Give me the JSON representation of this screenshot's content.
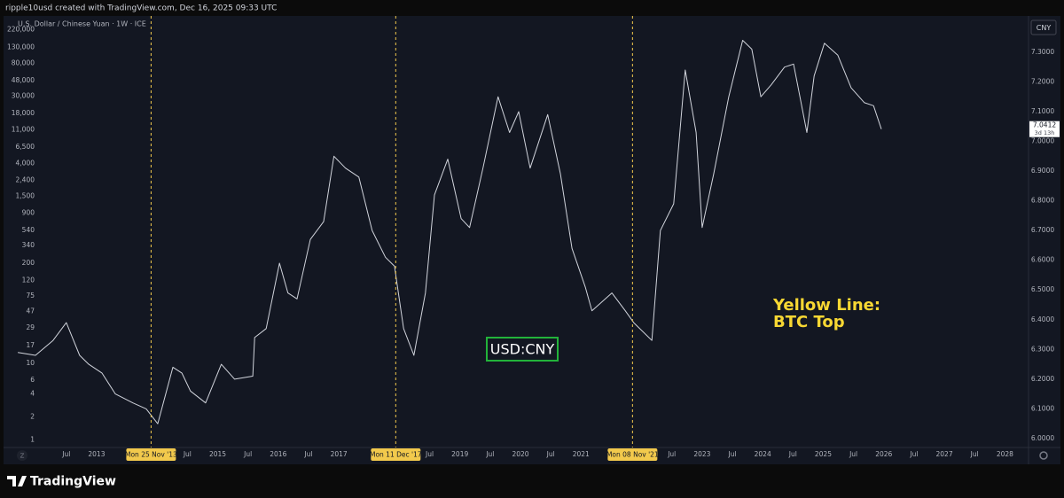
{
  "header": "ripple10usd created with TradingView.com, Dec 16, 2025 09:33 UTC",
  "footer_logo": "TradingView",
  "chart_data": {
    "type": "line",
    "symbol": "U.S. Dollar / Chinese Yuan · 1W · ICE",
    "currency": "CNY",
    "scale_button": "Z",
    "countdown": "3d 13h",
    "annotations": [
      "Yellow Line:",
      "BTC Top"
    ],
    "annotation_color": "#f7d733",
    "boxed_label": "USD:CNY",
    "boxed_label_color": "#22b33a",
    "x": [
      2011.7,
      2011.99,
      2012.28,
      2012.5,
      2012.72,
      2012.87,
      2013.09,
      2013.31,
      2013.6,
      2013.82,
      2014.01,
      2014.26,
      2014.41,
      2014.55,
      2014.8,
      2015.06,
      2015.28,
      2015.58,
      2015.61,
      2015.8,
      2016.02,
      2016.16,
      2016.31,
      2016.53,
      2016.75,
      2016.92,
      2017.11,
      2017.33,
      2017.55,
      2017.77,
      2017.92,
      2018.07,
      2018.24,
      2018.43,
      2018.58,
      2018.8,
      2019.02,
      2019.16,
      2019.38,
      2019.63,
      2019.82,
      2019.97,
      2020.16,
      2020.45,
      2020.66,
      2020.85,
      2021.07,
      2021.18,
      2021.51,
      2021.73,
      2021.87,
      2022.17,
      2022.31,
      2022.53,
      2022.72,
      2022.9,
      2023.0,
      2023.19,
      2023.44,
      2023.67,
      2023.82,
      2023.97,
      2024.14,
      2024.36,
      2024.51,
      2024.73,
      2024.85,
      2025.02,
      2025.24,
      2025.46,
      2025.68,
      2025.83,
      2025.96
    ],
    "series": [
      {
        "name": "USD:CNY",
        "color": "#d1d4dc",
        "axis": "y2",
        "values": [
          6.29,
          6.28,
          6.33,
          6.39,
          6.28,
          6.25,
          6.22,
          6.15,
          6.12,
          6.1,
          6.05,
          6.24,
          6.22,
          6.16,
          6.12,
          6.25,
          6.2,
          6.21,
          6.34,
          6.37,
          6.59,
          6.49,
          6.47,
          6.67,
          6.73,
          6.95,
          6.91,
          6.88,
          6.7,
          6.61,
          6.58,
          6.37,
          6.28,
          6.49,
          6.82,
          6.94,
          6.74,
          6.71,
          6.91,
          7.15,
          7.03,
          7.1,
          6.91,
          7.09,
          6.89,
          6.64,
          6.51,
          6.43,
          6.49,
          6.43,
          6.39,
          6.33,
          6.7,
          6.79,
          7.24,
          7.03,
          6.71,
          6.89,
          7.15,
          7.34,
          7.31,
          7.15,
          7.19,
          7.25,
          7.26,
          7.03,
          7.22,
          7.33,
          7.29,
          7.18,
          7.13,
          7.12,
          7.0412
        ]
      }
    ],
    "xlim": [
      2011.61,
      2028.39
    ],
    "xticks": [
      {
        "value": 2012.5,
        "label": "Jul"
      },
      2013,
      {
        "value": 2014.5,
        "label": "Jul"
      },
      2015,
      {
        "value": 2015.5,
        "label": "Jul"
      },
      2016,
      {
        "value": 2016.5,
        "label": "Jul"
      },
      2017,
      {
        "value": 2018.5,
        "label": "Jul"
      },
      2019,
      {
        "value": 2019.5,
        "label": "Jul"
      },
      2020,
      {
        "value": 2020.5,
        "label": "Jul"
      },
      2021,
      {
        "value": 2022.5,
        "label": "Jul"
      },
      2023,
      {
        "value": 2023.5,
        "label": "Jul"
      },
      2024,
      {
        "value": 2024.5,
        "label": "Jul"
      },
      2025,
      {
        "value": 2025.5,
        "label": "Jul"
      },
      2026,
      {
        "value": 2026.5,
        "label": "Jul"
      },
      2027,
      {
        "value": 2027.5,
        "label": "Jul"
      },
      2028
    ],
    "vlines": [
      {
        "x": 2013.9,
        "label": "Mon 25 Nov '13"
      },
      {
        "x": 2017.94,
        "label": "Mon 11 Dec '17"
      },
      {
        "x": 2021.85,
        "label": "Mon 08 Nov '21"
      }
    ],
    "vline_color": "#f2c94c",
    "y_log": true,
    "ylim": [
      0.8,
      300000
    ],
    "yticks": [
      {
        "value": 220000,
        "label": "220,000"
      },
      {
        "value": 130000,
        "label": "130,000"
      },
      {
        "value": 80000,
        "label": "80,000"
      },
      {
        "value": 48000,
        "label": "48,000"
      },
      {
        "value": 30000,
        "label": "30,000"
      },
      {
        "value": 18000,
        "label": "18,000"
      },
      {
        "value": 11000,
        "label": "11,000"
      },
      {
        "value": 6500,
        "label": "6,500"
      },
      {
        "value": 4000,
        "label": "4,000"
      },
      {
        "value": 2400,
        "label": "2,400"
      },
      {
        "value": 1500,
        "label": "1,500"
      },
      900,
      540,
      340,
      200,
      120,
      75,
      47,
      29,
      17,
      10,
      6,
      4,
      2,
      1
    ],
    "y2lim": [
      5.97,
      7.41
    ],
    "y2ticks": [
      {
        "value": 6.0,
        "label": "6.0000"
      },
      {
        "value": 6.1,
        "label": "6.1000"
      },
      {
        "value": 6.2,
        "label": "6.2000"
      },
      {
        "value": 6.3,
        "label": "6.3000"
      },
      {
        "value": 6.4,
        "label": "6.4000"
      },
      {
        "value": 6.5,
        "label": "6.5000"
      },
      {
        "value": 6.6,
        "label": "6.6000"
      },
      {
        "value": 6.7,
        "label": "6.7000"
      },
      {
        "value": 6.8,
        "label": "6.8000"
      },
      {
        "value": 6.9,
        "label": "6.9000"
      },
      {
        "value": 7.0,
        "label": "7.0000"
      },
      {
        "value": 7.1,
        "label": "7.1000"
      },
      {
        "value": 7.2,
        "label": "7.2000"
      },
      {
        "value": 7.3,
        "label": "7.3000"
      }
    ],
    "grid": false
  }
}
